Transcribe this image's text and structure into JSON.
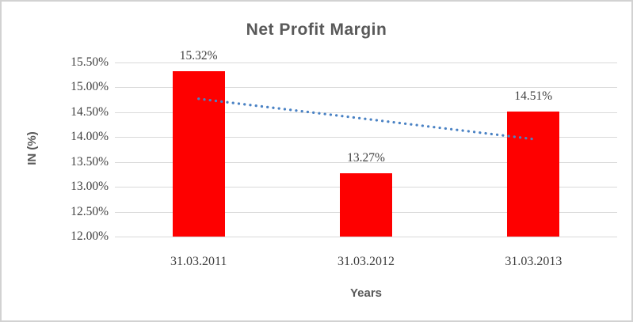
{
  "chart_data": {
    "type": "bar",
    "title": "Net Profit Margin",
    "categories": [
      "31.03.2011",
      "31.03.2012",
      "31.03.2013"
    ],
    "values": [
      15.32,
      13.27,
      14.51
    ],
    "data_labels": [
      "15.32%",
      "13.27%",
      "14.51%"
    ],
    "xlabel": "Years",
    "ylabel": "IN (%)",
    "ylim": [
      12.0,
      15.5
    ],
    "ytick_step": 0.5,
    "ytick_labels": [
      "15.50%",
      "15.00%",
      "14.50%",
      "14.00%",
      "13.50%",
      "13.00%",
      "12.50%",
      "12.00%"
    ],
    "grid": true,
    "legend_position": "none",
    "series_color": "#fe0000",
    "trendline": {
      "type": "linear",
      "style": "dotted",
      "color": "#4a82c4",
      "start_value": 14.77,
      "end_value": 13.96
    },
    "colors": {
      "title_text": "#595959",
      "axis_text": "#3f3f3f",
      "gridline": "#d9d9d9",
      "chart_border": "#d2d2d2",
      "background": "#ffffff"
    }
  }
}
